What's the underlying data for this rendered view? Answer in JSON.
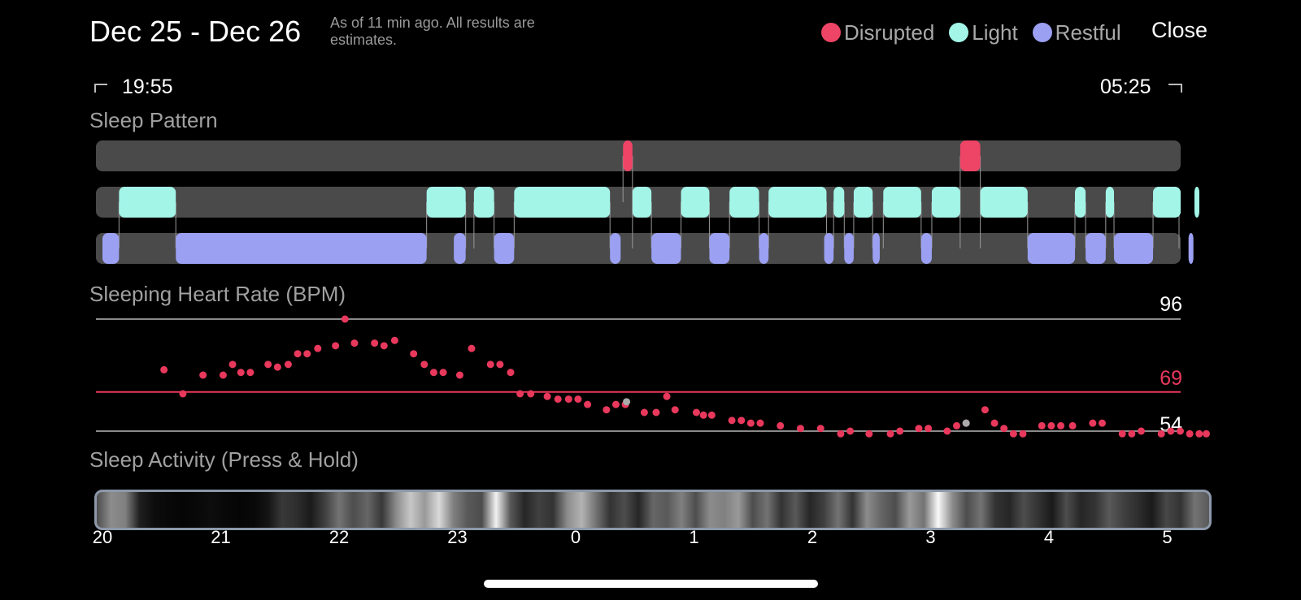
{
  "header": {
    "title": "Dec 25 - Dec 26",
    "subtitle": "As of 11 min ago. All results are estimates.",
    "close_label": "Close"
  },
  "legend": [
    {
      "label": "Disrupted",
      "color": "#ee4466"
    },
    {
      "label": "Light",
      "color": "#a3f5e8"
    },
    {
      "label": "Restful",
      "color": "#9ba0f2"
    }
  ],
  "time_range": {
    "start": "19:55",
    "end": "05:25"
  },
  "sections": {
    "sleep_pattern": "Sleep Pattern",
    "heart_rate": "Sleeping Heart Rate (BPM)",
    "activity": "Sleep Activity (Press & Hold)"
  },
  "colors": {
    "track": "#4a4a4a",
    "disrupted": "#ee4466",
    "light": "#a3f5e8",
    "restful": "#9ba0f2",
    "hr_dot": "#e8385c",
    "hr_dot_gray": "#aaaaaa",
    "gridline": "#8a8a8a",
    "avg_line": "#e8385c"
  },
  "chart_data": [
    {
      "type": "timeline",
      "title": "Sleep Pattern",
      "x_range_hours": [
        -4,
        5.42
      ],
      "lanes": [
        "Disrupted",
        "Light",
        "Restful"
      ],
      "segments": {
        "Disrupted": [
          [
            0.4,
            0.48
          ],
          [
            3.25,
            3.42
          ]
        ],
        "Light": [
          [
            -3.86,
            -3.38
          ],
          [
            -1.26,
            -0.93
          ],
          [
            -0.86,
            -0.69
          ],
          [
            -0.52,
            0.29
          ],
          [
            0.48,
            0.64
          ],
          [
            0.89,
            1.13
          ],
          [
            1.3,
            1.55
          ],
          [
            1.63,
            2.12
          ],
          [
            2.18,
            2.27
          ],
          [
            2.35,
            2.51
          ],
          [
            2.6,
            2.92
          ],
          [
            3.01,
            3.25
          ],
          [
            3.42,
            3.82
          ],
          [
            4.22,
            4.31
          ],
          [
            4.48,
            4.55
          ],
          [
            4.88,
            5.13
          ],
          [
            5.23,
            5.31
          ]
        ]
      },
      "restful": [
        [
          -4.0,
          -3.86
        ],
        [
          -3.38,
          -1.26
        ],
        [
          -1.03,
          -0.93
        ],
        [
          -0.69,
          -0.52
        ],
        [
          0.29,
          0.38
        ],
        [
          0.64,
          0.89
        ],
        [
          1.13,
          1.3
        ],
        [
          1.55,
          1.63
        ],
        [
          2.1,
          2.18
        ],
        [
          2.27,
          2.35
        ],
        [
          2.51,
          2.57
        ],
        [
          2.92,
          3.01
        ],
        [
          3.82,
          4.22
        ],
        [
          4.31,
          4.48
        ],
        [
          4.55,
          4.88
        ],
        [
          5.18,
          5.26
        ]
      ],
      "xlabel": "",
      "ylabel": ""
    },
    {
      "type": "scatter",
      "title": "Sleeping Heart Rate (BPM)",
      "reference_lines": [
        96,
        69,
        54
      ],
      "ylim": [
        54,
        96
      ],
      "x_ticks": [
        "20",
        "21",
        "22",
        "23",
        "0",
        "1",
        "2",
        "3",
        "4",
        "5"
      ],
      "points": [
        [
          -3.48,
          77
        ],
        [
          -3.32,
          68
        ],
        [
          -3.15,
          75
        ],
        [
          -2.98,
          75
        ],
        [
          -2.9,
          79
        ],
        [
          -2.83,
          76
        ],
        [
          -2.75,
          76
        ],
        [
          -2.6,
          79
        ],
        [
          -2.52,
          78
        ],
        [
          -2.43,
          79
        ],
        [
          -2.35,
          83
        ],
        [
          -2.27,
          83
        ],
        [
          -2.18,
          85
        ],
        [
          -2.03,
          86
        ],
        [
          -1.95,
          96
        ],
        [
          -1.87,
          87
        ],
        [
          -1.7,
          87
        ],
        [
          -1.62,
          86
        ],
        [
          -1.53,
          88
        ],
        [
          -1.37,
          83
        ],
        [
          -1.28,
          79
        ],
        [
          -1.2,
          76
        ],
        [
          -1.12,
          76
        ],
        [
          -0.98,
          75
        ],
        [
          -0.88,
          85
        ],
        [
          -0.72,
          79
        ],
        [
          -0.64,
          79
        ],
        [
          -0.55,
          76
        ],
        [
          -0.47,
          68
        ],
        [
          -0.38,
          68
        ],
        [
          -0.24,
          67
        ],
        [
          -0.15,
          66
        ],
        [
          -0.06,
          66
        ],
        [
          0.02,
          66
        ],
        [
          0.1,
          64
        ],
        [
          0.26,
          62
        ],
        [
          0.34,
          64
        ],
        [
          0.42,
          64
        ],
        [
          0.58,
          61
        ],
        [
          0.68,
          61
        ],
        [
          0.77,
          67
        ],
        [
          0.84,
          62
        ],
        [
          1.02,
          61
        ],
        [
          1.08,
          60
        ],
        [
          1.15,
          60
        ],
        [
          1.32,
          58
        ],
        [
          1.4,
          58
        ],
        [
          1.48,
          57
        ],
        [
          1.56,
          57
        ],
        [
          1.73,
          56
        ],
        [
          1.9,
          55
        ],
        [
          2.07,
          55
        ],
        [
          2.24,
          53
        ],
        [
          2.32,
          54
        ],
        [
          2.48,
          53
        ],
        [
          2.66,
          53
        ],
        [
          2.74,
          54
        ],
        [
          2.9,
          55
        ],
        [
          2.98,
          55
        ],
        [
          3.14,
          54
        ],
        [
          3.22,
          56
        ],
        [
          3.3,
          57
        ],
        [
          3.46,
          62
        ],
        [
          3.54,
          57
        ],
        [
          3.62,
          55
        ],
        [
          3.7,
          53
        ],
        [
          3.78,
          53
        ],
        [
          3.94,
          56
        ],
        [
          4.02,
          56
        ],
        [
          4.1,
          56
        ],
        [
          4.2,
          56
        ],
        [
          4.37,
          57
        ],
        [
          4.45,
          57
        ],
        [
          4.62,
          53
        ],
        [
          4.7,
          53
        ],
        [
          4.78,
          54
        ],
        [
          4.95,
          53
        ],
        [
          5.03,
          54
        ],
        [
          5.11,
          54
        ],
        [
          5.19,
          53
        ],
        [
          5.27,
          53
        ],
        [
          5.33,
          53
        ]
      ],
      "gray_points": [
        [
          0.43,
          65
        ],
        [
          3.3,
          57
        ]
      ],
      "xlabel": "",
      "ylabel": ""
    },
    {
      "type": "heatmap",
      "title": "Sleep Activity (Press & Hold)",
      "x_ticks": [
        "20",
        "21",
        "22",
        "23",
        "0",
        "1",
        "2",
        "3",
        "4",
        "5"
      ],
      "intensity": [
        0.3,
        0.55,
        0.5,
        0.12,
        0.05,
        0.03,
        0.02,
        0.03,
        0.05,
        0.03,
        0.02,
        0.03,
        0.08,
        0.22,
        0.18,
        0.1,
        0.25,
        0.45,
        0.3,
        0.4,
        0.22,
        0.55,
        0.78,
        0.6,
        0.85,
        0.5,
        0.35,
        0.3,
        0.95,
        0.35,
        0.15,
        0.25,
        0.2,
        0.55,
        0.7,
        0.45,
        0.2,
        0.3,
        0.15,
        0.4,
        0.35,
        0.5,
        0.3,
        0.55,
        0.5,
        0.6,
        0.3,
        0.45,
        0.2,
        0.35,
        0.15,
        0.25,
        0.45,
        0.2,
        0.55,
        0.4,
        0.3,
        0.6,
        0.45,
        0.98,
        0.55,
        0.3,
        0.45,
        0.2,
        0.15,
        0.3,
        0.2,
        0.1,
        0.3,
        0.15,
        0.2,
        0.35,
        0.25,
        0.18,
        0.1,
        0.28,
        0.2,
        0.45,
        0.35
      ]
    }
  ]
}
